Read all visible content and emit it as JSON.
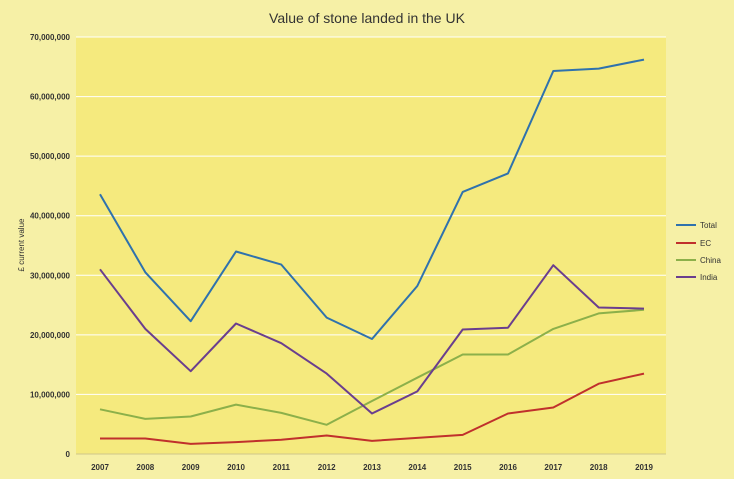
{
  "chart_data": {
    "type": "line",
    "title": "Value of stone landed in the UK",
    "xlabel": "",
    "ylabel": "£ current value",
    "categories": [
      "2007",
      "2008",
      "2009",
      "2010",
      "2011",
      "2012",
      "2013",
      "2014",
      "2015",
      "2016",
      "2017",
      "2018",
      "2019"
    ],
    "ylim": [
      0,
      70000000
    ],
    "yticks": [
      0,
      10000000,
      20000000,
      30000000,
      40000000,
      50000000,
      60000000,
      70000000
    ],
    "ytick_labels": [
      "0",
      "10,000,000",
      "20,000,000",
      "30,000,000",
      "40,000,000",
      "50,000,000",
      "60,000,000",
      "70,000,000"
    ],
    "grid": true,
    "legend_position": "right",
    "series": [
      {
        "name": "Total",
        "color": "#2f72ad",
        "values": [
          43600000,
          30500000,
          22300000,
          34000000,
          31800000,
          22900000,
          19300000,
          28200000,
          44000000,
          47100000,
          64300000,
          64700000,
          66200000
        ]
      },
      {
        "name": "EC",
        "color": "#c0302c",
        "values": [
          2600000,
          2600000,
          1700000,
          2000000,
          2400000,
          3100000,
          2200000,
          2700000,
          3200000,
          6800000,
          7800000,
          11800000,
          13500000
        ]
      },
      {
        "name": "China",
        "color": "#8cb04a",
        "values": [
          7500000,
          5900000,
          6300000,
          8300000,
          6900000,
          4900000,
          8900000,
          12800000,
          16700000,
          16700000,
          21000000,
          23600000,
          24200000
        ]
      },
      {
        "name": "India",
        "color": "#6a3e8e",
        "values": [
          31000000,
          21000000,
          13900000,
          21900000,
          18600000,
          13500000,
          6800000,
          10500000,
          20900000,
          21200000,
          31700000,
          24600000,
          24400000
        ]
      }
    ]
  }
}
